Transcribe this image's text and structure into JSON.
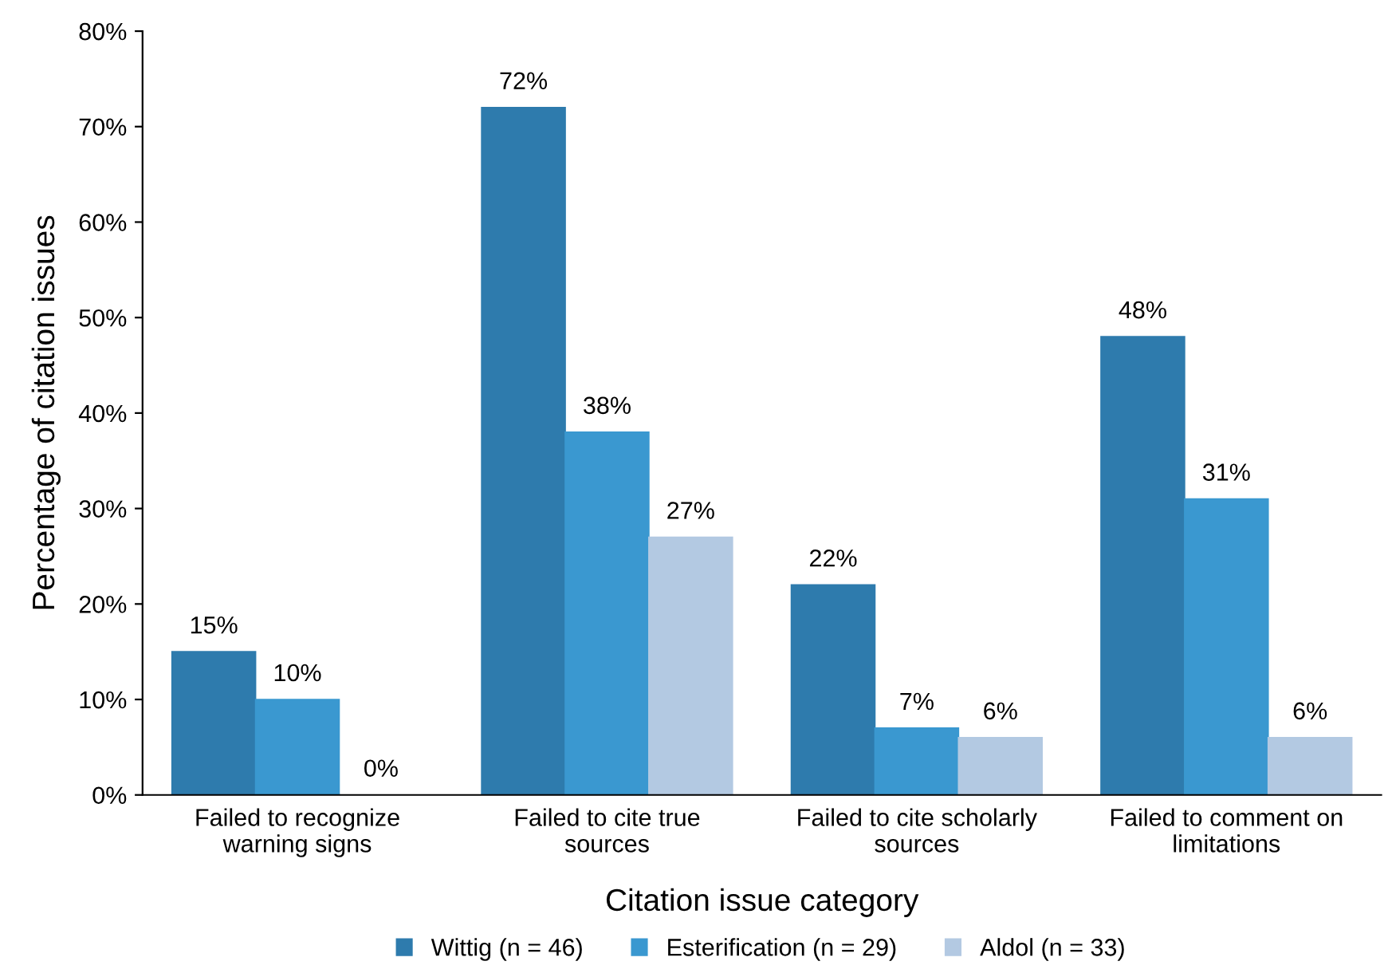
{
  "chart_data": {
    "type": "bar",
    "xlabel": "Citation issue category",
    "ylabel": "Percentage of citation issues",
    "categories": [
      "Failed to recognize warning signs",
      "Failed to cite true sources",
      "Failed to cite scholarly sources",
      "Failed to comment on limitations"
    ],
    "series": [
      {
        "name": "Wittig (n = 46)",
        "color": "#2e7bad",
        "values": [
          15,
          72,
          22,
          48
        ],
        "value_labels": [
          "15%",
          "72%",
          "22%",
          "48%"
        ]
      },
      {
        "name": "Esterification (n = 29)",
        "color": "#3a98d0",
        "values": [
          10,
          38,
          7,
          31
        ],
        "value_labels": [
          "10%",
          "38%",
          "7%",
          "31%"
        ]
      },
      {
        "name": "Aldol (n = 33)",
        "color": "#b3c9e2",
        "values": [
          0,
          27,
          6,
          6
        ],
        "value_labels": [
          "0%",
          "27%",
          "6%",
          "6%"
        ]
      }
    ],
    "ylim": [
      0,
      80
    ],
    "yticks": [
      {
        "value": 0,
        "label": "0%"
      },
      {
        "value": 10,
        "label": "10%"
      },
      {
        "value": 20,
        "label": "20%"
      },
      {
        "value": 30,
        "label": "30%"
      },
      {
        "value": 40,
        "label": "40%"
      },
      {
        "value": 50,
        "label": "50%"
      },
      {
        "value": 60,
        "label": "60%"
      },
      {
        "value": 70,
        "label": "70%"
      },
      {
        "value": 80,
        "label": "80%"
      }
    ],
    "grid": false,
    "legend": "bottom"
  }
}
